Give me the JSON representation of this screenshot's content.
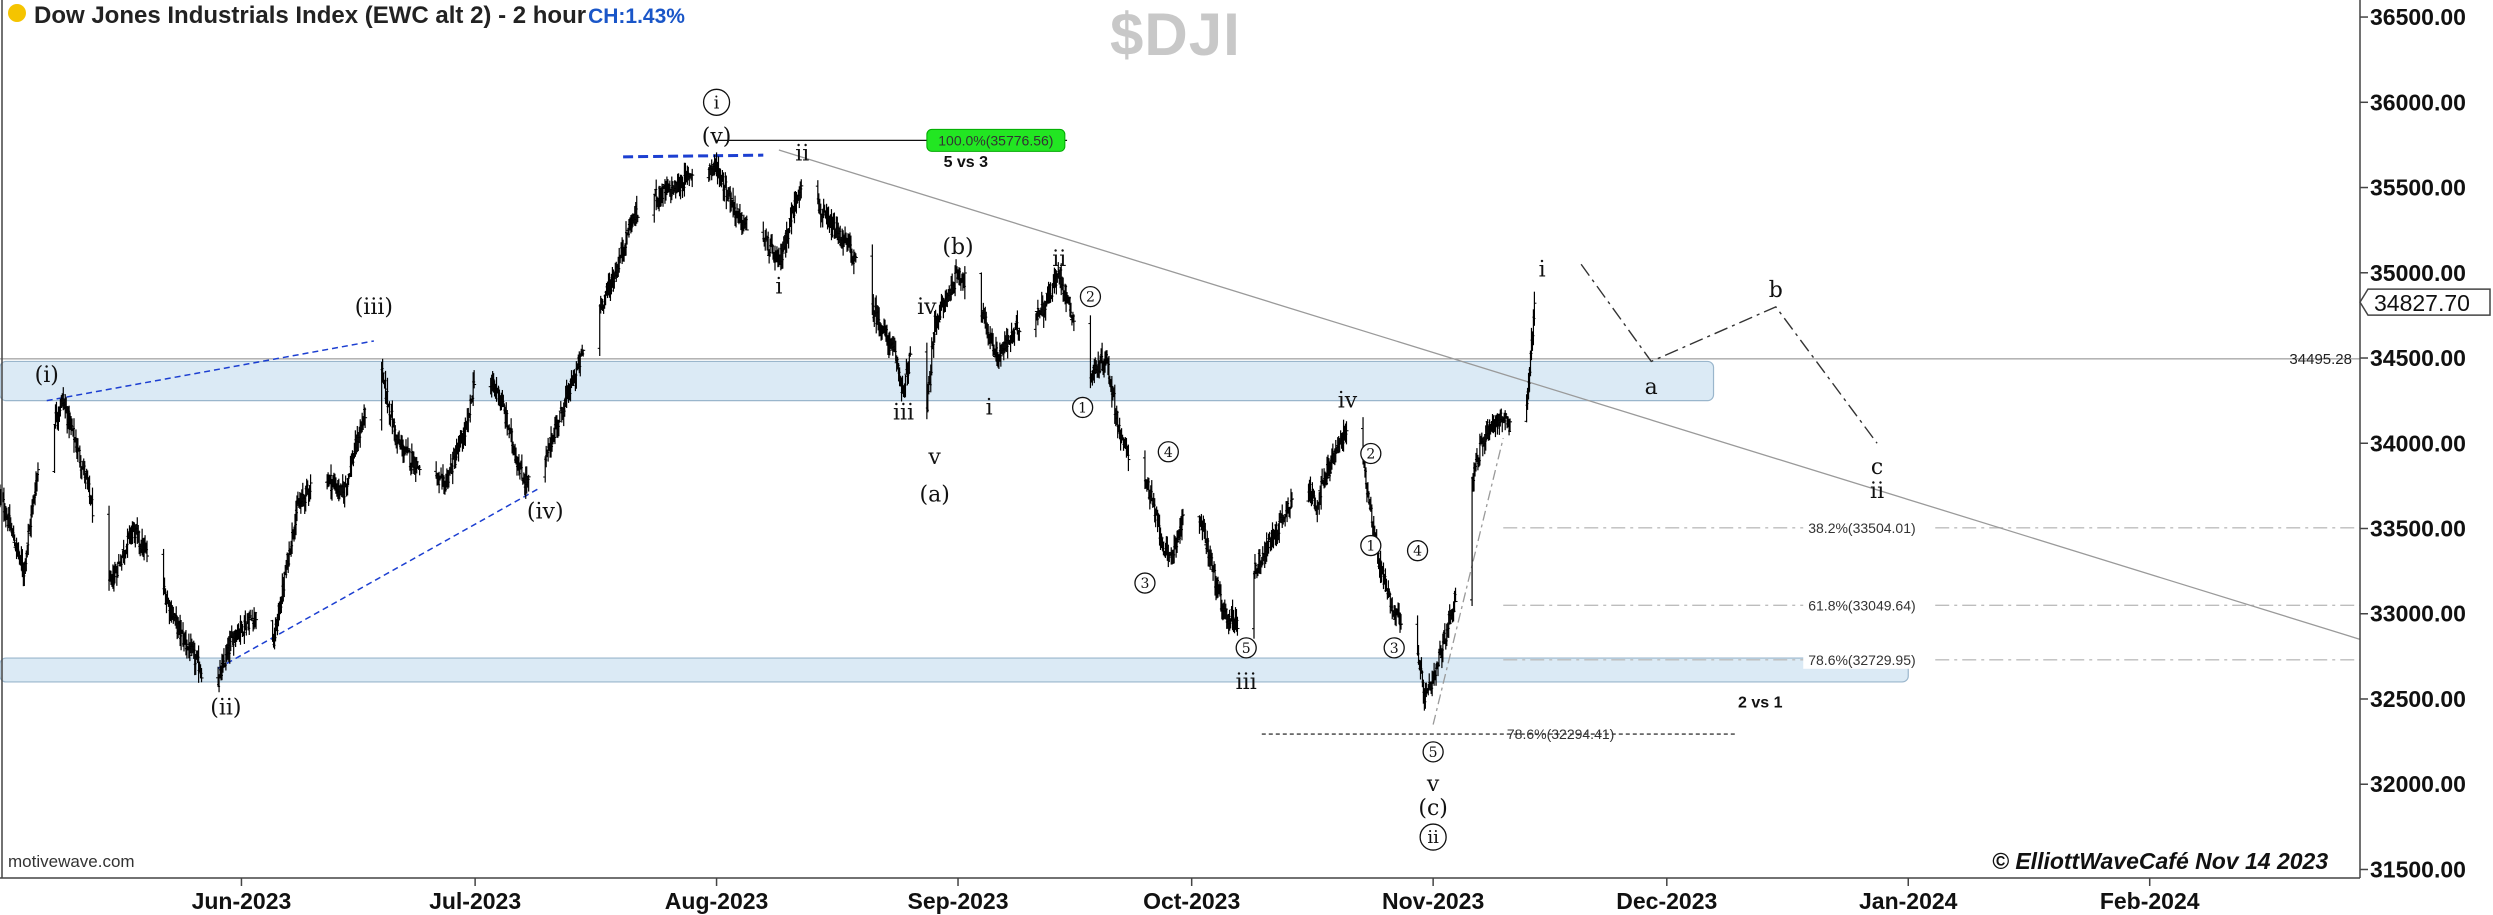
{
  "header": {
    "title": "Dow Jones Industrials Index (EWC alt 2) - 2 hour",
    "change": "CH:1.43%",
    "symbol": "$DJI",
    "watermark_left": "motivewave.com",
    "copyright": "© ElliottWaveCafé Nov 14 2023"
  },
  "colors": {
    "bars": "#000000",
    "zone_fill": "#dbeaf5",
    "zone_stroke": "#9ab6cc",
    "trend_blue": "#1c3fd1",
    "fib_green": "#22e622",
    "fib_line": "#bdbdbd"
  },
  "chart_data": {
    "type": "ohlc",
    "title": "Dow Jones Industrials Index (EWC alt 2) - 2 hour",
    "x_tick_labels": [
      "Jun-2023",
      "Jul-2023",
      "Aug-2023",
      "Sep-2023",
      "Oct-2023",
      "Nov-2023",
      "Dec-2023",
      "Jan-2024",
      "Feb-2024"
    ],
    "x_ticks": [
      "2023-06-01",
      "2023-07-01",
      "2023-08-01",
      "2023-09-01",
      "2023-10-01",
      "2023-11-01",
      "2023-12-01",
      "2024-01-01",
      "2024-02-01"
    ],
    "xlim": [
      "2023-05-01",
      "2024-02-28"
    ],
    "ylim": [
      31450,
      36600
    ],
    "y_ticks": [
      36500,
      36000,
      35500,
      35000,
      34500,
      34000,
      33500,
      33000,
      32500,
      32000,
      31500
    ],
    "y_tick_labels": [
      "36500.00",
      "36000.00",
      "35500.00",
      "35000.00",
      "34500.00",
      "34000.00",
      "33500.00",
      "33000.00",
      "32500.00",
      "32000.00",
      "31500.00"
    ],
    "last_price": 34827.7,
    "last_price_label": "34827.70",
    "price_path": [
      [
        "2023-05-01",
        33700
      ],
      [
        "2023-05-04",
        33250
      ],
      [
        "2023-05-06",
        33900
      ],
      [
        "2023-05-09",
        34260
      ],
      [
        "2023-05-12",
        33800
      ],
      [
        "2023-05-15",
        33150
      ],
      [
        "2023-05-18",
        33500
      ],
      [
        "2023-05-21",
        33250
      ],
      [
        "2023-05-24",
        32900
      ],
      [
        "2023-05-27",
        32650
      ],
      [
        "2023-05-29",
        32600
      ],
      [
        "2023-05-31",
        32880
      ],
      [
        "2023-06-03",
        33000
      ],
      [
        "2023-06-05",
        32800
      ],
      [
        "2023-06-08",
        33600
      ],
      [
        "2023-06-11",
        33850
      ],
      [
        "2023-06-14",
        33700
      ],
      [
        "2023-06-17",
        34200
      ],
      [
        "2023-06-18",
        34600
      ],
      [
        "2023-06-21",
        34000
      ],
      [
        "2023-06-24",
        33850
      ],
      [
        "2023-06-27",
        33750
      ],
      [
        "2023-06-30",
        34100
      ],
      [
        "2023-07-01",
        34420
      ],
      [
        "2023-07-04",
        34300
      ],
      [
        "2023-07-07",
        33800
      ],
      [
        "2023-07-09",
        33730
      ],
      [
        "2023-07-11",
        34050
      ],
      [
        "2023-07-14",
        34420
      ],
      [
        "2023-07-16",
        34700
      ],
      [
        "2023-07-19",
        35000
      ],
      [
        "2023-07-21",
        35300
      ],
      [
        "2023-07-24",
        35450
      ],
      [
        "2023-07-27",
        35500
      ],
      [
        "2023-07-29",
        35600
      ],
      [
        "2023-08-01",
        35620
      ],
      [
        "2023-08-04",
        35300
      ],
      [
        "2023-08-07",
        35200
      ],
      [
        "2023-08-09",
        35050
      ],
      [
        "2023-08-12",
        35570
      ],
      [
        "2023-08-15",
        35300
      ],
      [
        "2023-08-18",
        35150
      ],
      [
        "2023-08-21",
        34800
      ],
      [
        "2023-08-24",
        34500
      ],
      [
        "2023-08-25",
        34300
      ],
      [
        "2023-08-26",
        34550
      ],
      [
        "2023-08-28",
        34200
      ],
      [
        "2023-08-29",
        34700
      ],
      [
        "2023-09-01",
        35000
      ],
      [
        "2023-09-03",
        34900
      ],
      [
        "2023-09-06",
        34500
      ],
      [
        "2023-09-09",
        34700
      ],
      [
        "2023-09-12",
        34800
      ],
      [
        "2023-09-14",
        35000
      ],
      [
        "2023-09-16",
        34700
      ],
      [
        "2023-09-18",
        34400
      ],
      [
        "2023-09-20",
        34500
      ],
      [
        "2023-09-22",
        34000
      ],
      [
        "2023-09-25",
        33800
      ],
      [
        "2023-09-28",
        33300
      ],
      [
        "2023-10-01",
        33700
      ],
      [
        "2023-10-03",
        33400
      ],
      [
        "2023-10-05",
        33000
      ],
      [
        "2023-10-07",
        32950
      ],
      [
        "2023-10-09",
        33250
      ],
      [
        "2023-10-12",
        33500
      ],
      [
        "2023-10-15",
        33800
      ],
      [
        "2023-10-17",
        33650
      ],
      [
        "2023-10-19",
        33900
      ],
      [
        "2023-10-21",
        34100
      ],
      [
        "2023-10-23",
        33900
      ],
      [
        "2023-10-25",
        33300
      ],
      [
        "2023-10-27",
        33000
      ],
      [
        "2023-10-29",
        32950
      ],
      [
        "2023-10-31",
        32500
      ],
      [
        "2023-11-01",
        32600
      ],
      [
        "2023-11-03",
        32950
      ],
      [
        "2023-11-05",
        33300
      ],
      [
        "2023-11-06",
        33800
      ],
      [
        "2023-11-08",
        34100
      ],
      [
        "2023-11-10",
        34150
      ],
      [
        "2023-11-12",
        34000
      ],
      [
        "2023-11-13",
        34200
      ],
      [
        "2023-11-14",
        34827.7
      ]
    ],
    "horizontal_levels": [
      {
        "value": 34495.28,
        "label": "34495.28"
      }
    ],
    "support_zones": [
      {
        "name": "upper",
        "from": "2023-05-01",
        "to": "2023-12-07",
        "low": 34250,
        "high": 34480
      },
      {
        "name": "lower",
        "from": "2023-05-01",
        "to": "2024-01-01",
        "low": 32600,
        "high": 32740
      }
    ],
    "fib_levels": [
      {
        "label": "100.0%(35776.56)",
        "value": 35776.56,
        "from": "2023-08-01",
        "to": "2023-09-15"
      },
      {
        "label": "38.2%(33504.01)",
        "value": 33504.01,
        "from": "2023-11-10",
        "to": "2024-02-28"
      },
      {
        "label": "61.8%(33049.64)",
        "value": 33049.64,
        "from": "2023-11-10",
        "to": "2024-02-28"
      },
      {
        "label": "78.6%(32729.95)",
        "value": 32729.95,
        "from": "2023-11-10",
        "to": "2024-02-28"
      },
      {
        "label": "78.6%(32294.41)",
        "value": 32294.41,
        "from": "2023-10-10",
        "to": "2023-12-10"
      }
    ],
    "text_annotations": [
      {
        "text": "5 vs 3",
        "x": "2023-09-02",
        "y": 35620
      },
      {
        "text": "2 vs 1",
        "x": "2023-12-13",
        "y": 32450
      }
    ],
    "trendlines": [
      {
        "style": "blue-dashed",
        "from": [
          "2023-05-07",
          34250
        ],
        "to": [
          "2023-06-18",
          34600
        ]
      },
      {
        "style": "blue-dashed",
        "from": [
          "2023-05-29",
          32680
        ],
        "to": [
          "2023-07-09",
          33730
        ]
      },
      {
        "style": "blue-dashed",
        "from": [
          "2023-07-20",
          35680
        ],
        "to": [
          "2023-08-07",
          35690
        ]
      },
      {
        "style": "gray",
        "from": [
          "2023-08-09",
          35720
        ],
        "to": [
          "2024-02-28",
          32850
        ]
      },
      {
        "style": "gray-dashdot",
        "from": [
          "2023-11-01",
          32350
        ],
        "to": [
          "2023-11-10",
          34030
        ]
      }
    ],
    "projection": [
      [
        "2023-11-20",
        35050
      ],
      [
        "2023-11-29",
        34480
      ],
      [
        "2023-12-15",
        34800
      ],
      [
        "2023-12-28",
        34000
      ]
    ],
    "wave_labels": [
      {
        "text": "(i)",
        "x": "2023-05-07",
        "y": 34400,
        "style": "paren"
      },
      {
        "text": "(ii)",
        "x": "2023-05-30",
        "y": 32450,
        "style": "paren"
      },
      {
        "text": "(iii)",
        "x": "2023-06-18",
        "y": 34800,
        "style": "paren"
      },
      {
        "text": "(iv)",
        "x": "2023-07-10",
        "y": 33600,
        "style": "paren"
      },
      {
        "text": "(v)",
        "x": "2023-08-01",
        "y": 35800,
        "style": "paren"
      },
      {
        "text": "i",
        "x": "2023-08-01",
        "y": 36000,
        "style": "circle"
      },
      {
        "text": "ii",
        "x": "2023-08-12",
        "y": 35700,
        "style": "plain"
      },
      {
        "text": "i",
        "x": "2023-08-09",
        "y": 34920,
        "style": "plain"
      },
      {
        "text": "iii",
        "x": "2023-08-25",
        "y": 34180,
        "style": "plain"
      },
      {
        "text": "iv",
        "x": "2023-08-28",
        "y": 34800,
        "style": "plain"
      },
      {
        "text": "v",
        "x": "2023-08-29",
        "y": 33920,
        "style": "plain"
      },
      {
        "text": "(a)",
        "x": "2023-08-29",
        "y": 33700,
        "style": "paren"
      },
      {
        "text": "(b)",
        "x": "2023-09-01",
        "y": 35150,
        "style": "paren"
      },
      {
        "text": "i",
        "x": "2023-09-05",
        "y": 34210,
        "style": "plain"
      },
      {
        "text": "ii",
        "x": "2023-09-14",
        "y": 35080,
        "style": "plain"
      },
      {
        "text": "2",
        "x": "2023-09-18",
        "y": 34860,
        "style": "circle"
      },
      {
        "text": "1",
        "x": "2023-09-17",
        "y": 34210,
        "style": "circle"
      },
      {
        "text": "4",
        "x": "2023-09-28",
        "y": 33950,
        "style": "circle"
      },
      {
        "text": "3",
        "x": "2023-09-25",
        "y": 33180,
        "style": "circle"
      },
      {
        "text": "5",
        "x": "2023-10-08",
        "y": 32800,
        "style": "circle"
      },
      {
        "text": "iii",
        "x": "2023-10-08",
        "y": 32600,
        "style": "plain"
      },
      {
        "text": "iv",
        "x": "2023-10-21",
        "y": 34250,
        "style": "plain"
      },
      {
        "text": "2",
        "x": "2023-10-24",
        "y": 33940,
        "style": "circle"
      },
      {
        "text": "1",
        "x": "2023-10-24",
        "y": 33400,
        "style": "circle"
      },
      {
        "text": "4",
        "x": "2023-10-30",
        "y": 33370,
        "style": "circle"
      },
      {
        "text": "3",
        "x": "2023-10-27",
        "y": 32800,
        "style": "circle"
      },
      {
        "text": "5",
        "x": "2023-11-01",
        "y": 32190,
        "style": "circle"
      },
      {
        "text": "v",
        "x": "2023-11-01",
        "y": 32000,
        "style": "plain"
      },
      {
        "text": "(c)",
        "x": "2023-11-01",
        "y": 31860,
        "style": "paren"
      },
      {
        "text": "ii",
        "x": "2023-11-01",
        "y": 31690,
        "style": "circle"
      },
      {
        "text": "i",
        "x": "2023-11-15",
        "y": 35020,
        "style": "plain"
      },
      {
        "text": "a",
        "x": "2023-11-29",
        "y": 34330,
        "style": "plain"
      },
      {
        "text": "b",
        "x": "2023-12-15",
        "y": 34900,
        "style": "plain"
      },
      {
        "text": "c",
        "x": "2023-12-28",
        "y": 33860,
        "style": "plain"
      },
      {
        "text": "ii",
        "x": "2023-12-28",
        "y": 33720,
        "style": "plain"
      }
    ]
  }
}
